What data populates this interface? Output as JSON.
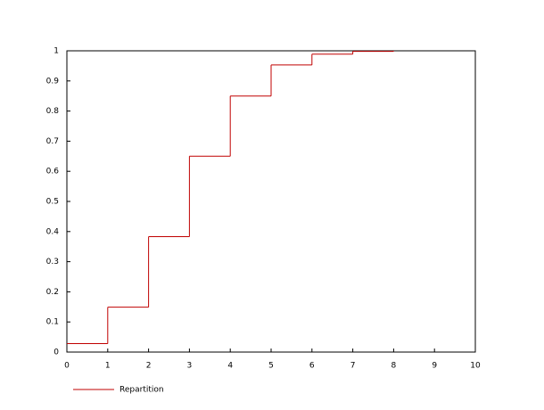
{
  "chart_data": {
    "type": "step",
    "x": [
      0,
      1,
      2,
      3,
      4,
      5,
      6,
      7,
      8
    ],
    "series": [
      {
        "name": "Repartition",
        "color": "#c00000",
        "values": [
          0.028,
          0.149,
          0.383,
          0.65,
          0.85,
          0.953,
          0.989,
          0.998,
          1
        ]
      }
    ],
    "xlim": [
      0,
      10
    ],
    "xticks": [
      0,
      1,
      2,
      3,
      4,
      5,
      6,
      7,
      8,
      9,
      10
    ],
    "ylim": [
      0,
      1
    ],
    "yticks": [
      0,
      0.1,
      0.2,
      0.3,
      0.4,
      0.5,
      0.6,
      0.7,
      0.8,
      0.9,
      1
    ],
    "legend": "bottom-left"
  }
}
